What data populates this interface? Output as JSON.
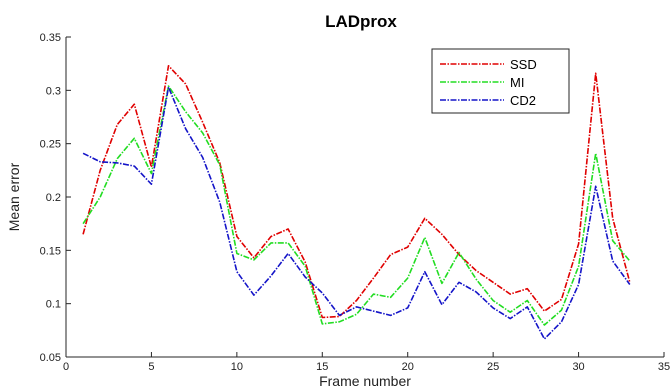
{
  "chart_data": {
    "type": "line",
    "title": "LADprox",
    "xlabel": "Frame number",
    "ylabel": "Mean error",
    "xlim": [
      0,
      35
    ],
    "ylim": [
      0.05,
      0.35
    ],
    "xticks": [
      0,
      5,
      10,
      15,
      20,
      25,
      30,
      35
    ],
    "yticks": [
      0.05,
      0.1,
      0.15,
      0.2,
      0.25,
      0.3,
      0.35
    ],
    "grid": false,
    "legend_position": "top-right",
    "x": [
      1,
      2,
      3,
      4,
      5,
      6,
      7,
      8,
      9,
      10,
      11,
      12,
      13,
      14,
      15,
      16,
      17,
      18,
      19,
      20,
      21,
      22,
      23,
      24,
      25,
      26,
      27,
      28,
      29,
      30,
      31,
      32,
      33
    ],
    "series": [
      {
        "name": "SSD",
        "color": "#e00000",
        "values": [
          0.165,
          0.225,
          0.268,
          0.287,
          0.228,
          0.323,
          0.306,
          0.27,
          0.232,
          0.163,
          0.143,
          0.163,
          0.17,
          0.139,
          0.087,
          0.088,
          0.103,
          0.124,
          0.146,
          0.153,
          0.18,
          0.165,
          0.146,
          0.131,
          0.12,
          0.109,
          0.114,
          0.093,
          0.104,
          0.156,
          0.316,
          0.18,
          0.12
        ]
      },
      {
        "name": "MI",
        "color": "#22dd22",
        "values": [
          0.175,
          0.2,
          0.236,
          0.255,
          0.222,
          0.304,
          0.28,
          0.26,
          0.23,
          0.147,
          0.141,
          0.157,
          0.157,
          0.135,
          0.081,
          0.083,
          0.09,
          0.109,
          0.106,
          0.124,
          0.162,
          0.119,
          0.148,
          0.123,
          0.103,
          0.092,
          0.103,
          0.08,
          0.094,
          0.135,
          0.241,
          0.159,
          0.14
        ]
      },
      {
        "name": "CD2",
        "color": "#1414c8",
        "values": [
          0.241,
          0.233,
          0.232,
          0.229,
          0.212,
          0.303,
          0.264,
          0.237,
          0.195,
          0.13,
          0.108,
          0.126,
          0.147,
          0.125,
          0.11,
          0.089,
          0.097,
          0.093,
          0.089,
          0.096,
          0.13,
          0.099,
          0.12,
          0.111,
          0.096,
          0.086,
          0.097,
          0.067,
          0.083,
          0.118,
          0.21,
          0.14,
          0.118
        ]
      }
    ]
  }
}
